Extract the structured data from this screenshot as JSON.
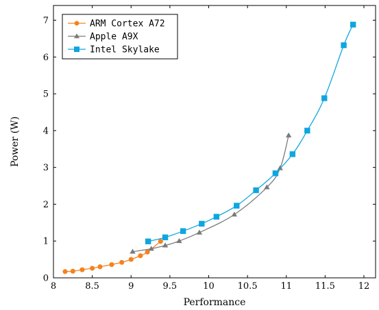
{
  "chart_data": {
    "type": "line",
    "xlabel": "Performance",
    "ylabel": "Power (W)",
    "xlim": [
      8,
      12.15
    ],
    "ylim": [
      0,
      7.4
    ],
    "x_ticks": [
      8,
      8.5,
      9,
      9.5,
      10,
      10.5,
      11,
      11.5,
      12
    ],
    "x_tick_labels": [
      "8",
      "8.5",
      "9",
      "9.5",
      "10",
      "10.5",
      "11",
      "11.5",
      "12"
    ],
    "y_ticks": [
      0,
      1,
      2,
      3,
      4,
      5,
      6,
      7
    ],
    "y_tick_labels": [
      "0",
      "1",
      "2",
      "3",
      "4",
      "5",
      "6",
      "7"
    ],
    "grid": false,
    "legend_position": "top-left",
    "series": [
      {
        "name": "ARM Cortex A72",
        "color": "#f5821f",
        "marker": "circle",
        "points": [
          [
            8.15,
            0.17
          ],
          [
            8.25,
            0.18
          ],
          [
            8.37,
            0.22
          ],
          [
            8.5,
            0.26
          ],
          [
            8.6,
            0.3
          ],
          [
            8.75,
            0.36
          ],
          [
            8.88,
            0.42
          ],
          [
            9.0,
            0.5
          ],
          [
            9.12,
            0.6
          ],
          [
            9.21,
            0.7
          ],
          [
            9.38,
            0.99
          ]
        ]
      },
      {
        "name": "Apple A9X",
        "color": "#7a7a7a",
        "marker": "triangle",
        "points": [
          [
            9.02,
            0.71
          ],
          [
            9.26,
            0.79
          ],
          [
            9.44,
            0.88
          ],
          [
            9.62,
            1.0
          ],
          [
            9.88,
            1.23
          ],
          [
            10.33,
            1.72
          ],
          [
            10.75,
            2.46
          ],
          [
            10.92,
            2.98
          ],
          [
            11.03,
            3.87
          ]
        ]
      },
      {
        "name": "Intel Skylake",
        "color": "#0fa6e0",
        "marker": "square",
        "points": [
          [
            9.22,
            0.99
          ],
          [
            9.44,
            1.1
          ],
          [
            9.67,
            1.27
          ],
          [
            9.91,
            1.47
          ],
          [
            10.1,
            1.66
          ],
          [
            10.36,
            1.96
          ],
          [
            10.61,
            2.38
          ],
          [
            10.86,
            2.84
          ],
          [
            11.08,
            3.36
          ],
          [
            11.27,
            4.0
          ],
          [
            11.49,
            4.88
          ],
          [
            11.74,
            6.32
          ],
          [
            11.86,
            6.88
          ]
        ]
      }
    ]
  }
}
